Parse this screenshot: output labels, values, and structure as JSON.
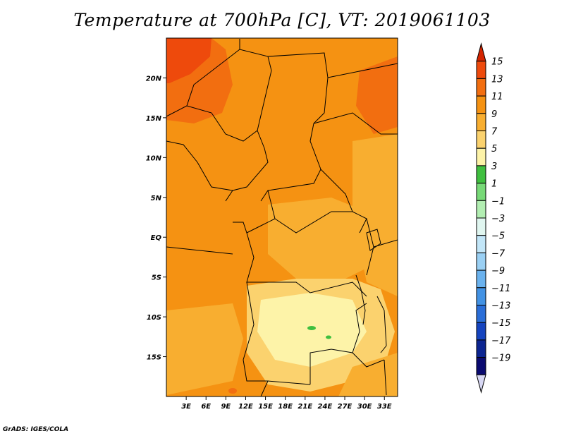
{
  "title": "Temperature at 700hPa [C], VT: 2019061103",
  "credit": "GrADS: IGES/COLA",
  "chart_data": {
    "type": "heatmap",
    "title": "Temperature at 700hPa [C], VT: 2019061103",
    "x_ticks": [
      {
        "label": "3E",
        "value": 3
      },
      {
        "label": "6E",
        "value": 6
      },
      {
        "label": "9E",
        "value": 9
      },
      {
        "label": "12E",
        "value": 12
      },
      {
        "label": "15E",
        "value": 15
      },
      {
        "label": "18E",
        "value": 18
      },
      {
        "label": "21E",
        "value": 21
      },
      {
        "label": "24E",
        "value": 24
      },
      {
        "label": "27E",
        "value": 27
      },
      {
        "label": "30E",
        "value": 30
      },
      {
        "label": "33E",
        "value": 33
      }
    ],
    "y_ticks": [
      {
        "label": "20N",
        "value": 20
      },
      {
        "label": "15N",
        "value": 15
      },
      {
        "label": "10N",
        "value": 10
      },
      {
        "label": "5N",
        "value": 5
      },
      {
        "label": "EQ",
        "value": 0
      },
      {
        "label": "5S",
        "value": -5
      },
      {
        "label": "10S",
        "value": -10
      },
      {
        "label": "15S",
        "value": -15
      }
    ],
    "xlim": [
      0,
      35
    ],
    "ylim": [
      -20,
      25
    ],
    "colorbar": {
      "levels": [
        15,
        13,
        11,
        9,
        7,
        5,
        3,
        1,
        -1,
        -3,
        -5,
        -7,
        -9,
        -11,
        -13,
        -15,
        -17,
        -19
      ],
      "level_labels": [
        "15",
        "13",
        "11",
        "9",
        "7",
        "5",
        "3",
        "1",
        "−1",
        "−3",
        "−5",
        "−7",
        "−9",
        "−11",
        "−13",
        "−15",
        "−17",
        "−19"
      ],
      "colors": [
        "#d42400",
        "#ee4a0c",
        "#f26e10",
        "#f59212",
        "#f8ae30",
        "#fbd26e",
        "#fdf3a8",
        "#3fbf3f",
        "#77d977",
        "#b2eeb2",
        "#e0f6f0",
        "#c2e6f8",
        "#9ad0f4",
        "#6ab2ee",
        "#4292e4",
        "#2a6ed8",
        "#1544bf",
        "#0c2591",
        "#0a0a70",
        "#d8d8f4"
      ]
    }
  }
}
